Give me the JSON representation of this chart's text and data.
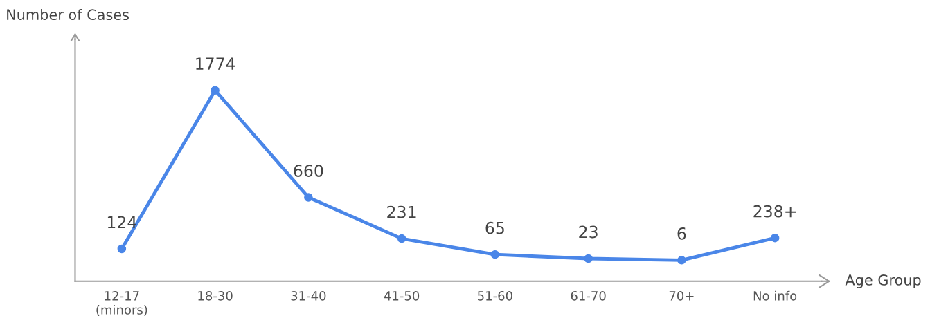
{
  "chart_data": {
    "type": "line",
    "ylabel": "Number of Cases",
    "xlabel": "Age Group",
    "categories": [
      "12-17\n(minors)",
      "18-30",
      "31-40",
      "41-50",
      "51-60",
      "61-70",
      "70+",
      "No info"
    ],
    "series": [
      {
        "color": "#4a86e8",
        "values": [
          124,
          1774,
          660,
          231,
          65,
          23,
          6,
          238
        ],
        "value_labels": [
          "124",
          "1774",
          "660",
          "231",
          "65",
          "23",
          "6",
          "238+"
        ]
      }
    ],
    "marker": "circle",
    "line_style": "solid",
    "grid": false,
    "legend": false,
    "tick_labels": "x"
  }
}
